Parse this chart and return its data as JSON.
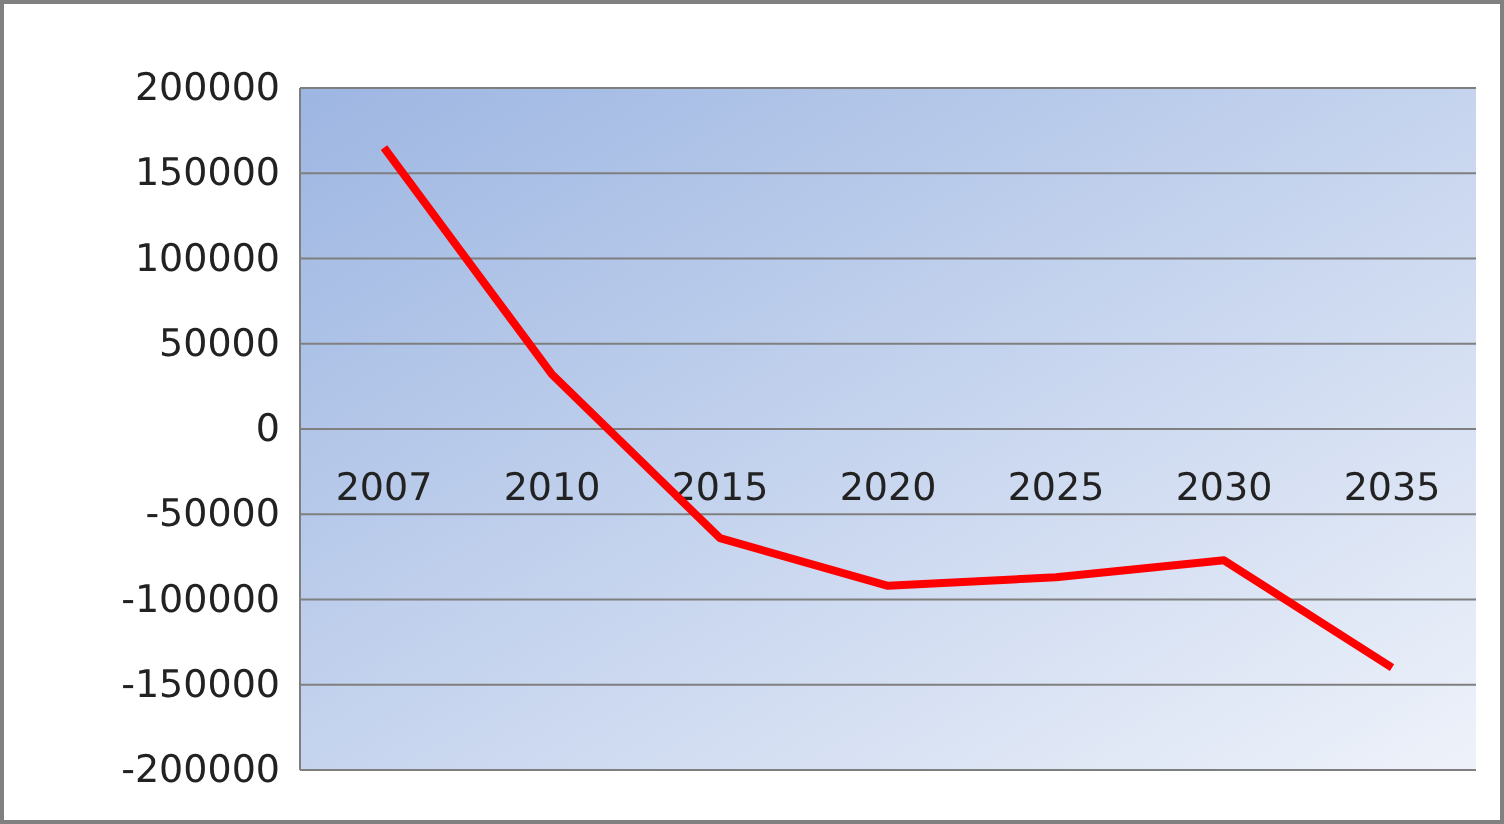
{
  "chart_data": {
    "type": "line",
    "categories": [
      "2007",
      "2010",
      "2015",
      "2020",
      "2025",
      "2030",
      "2035"
    ],
    "series": [
      {
        "color": "#ff0000",
        "values": [
          165000,
          32000,
          -64000,
          -92000,
          -87000,
          -77000,
          -140000
        ]
      }
    ],
    "ylim": [
      -200000,
      200000
    ],
    "yticks": [
      -200000,
      -150000,
      -100000,
      -50000,
      0,
      50000,
      100000,
      150000,
      200000
    ],
    "grid": "y",
    "marker": "none",
    "line_style": "solid"
  }
}
